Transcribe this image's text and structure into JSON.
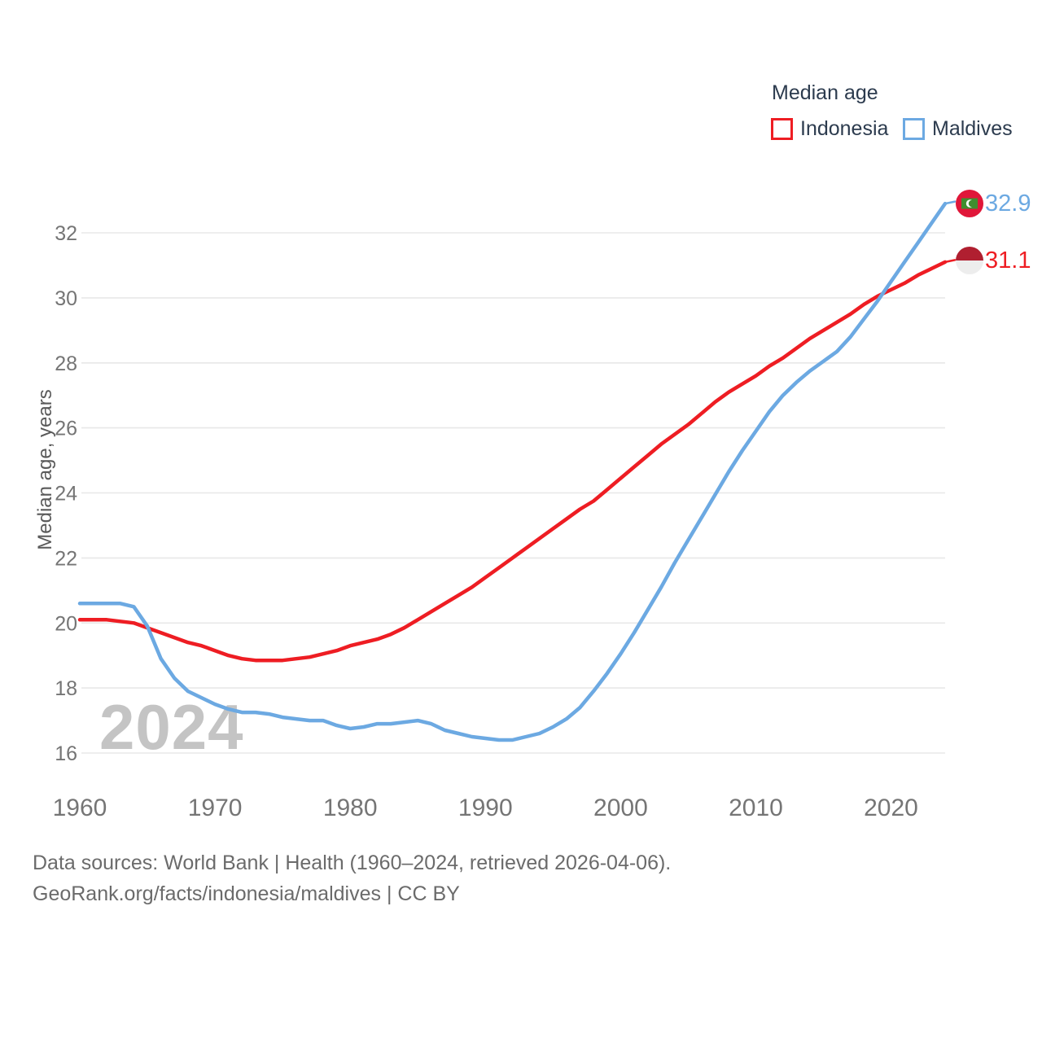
{
  "chart": {
    "watermark": "2024"
  },
  "legend": {
    "title": "Median age",
    "items": [
      {
        "label": "Indonesia",
        "color": "#ee1d23"
      },
      {
        "label": "Maldives",
        "color": "#6ca9e2"
      }
    ]
  },
  "y_axis": {
    "title": "Median age, years"
  },
  "end_labels": {
    "maldives": {
      "value": "32.9"
    },
    "indonesia": {
      "value": "31.1"
    }
  },
  "footer": {
    "line1": "Data sources: World Bank | Health (1960–2024, retrieved 2026-04-06).",
    "line2": "GeoRank.org/facts/indonesia/maldives | CC BY"
  },
  "chart_data": {
    "type": "line",
    "title": "Median age",
    "xlabel": "",
    "ylabel": "Median age, years",
    "x_start": 1960,
    "x_end": 2024,
    "ylim": [
      16,
      33.2
    ],
    "yticks": [
      16,
      18,
      20,
      22,
      24,
      26,
      28,
      30,
      32
    ],
    "xticks": [
      1960,
      1970,
      1980,
      1990,
      2000,
      2010,
      2020
    ],
    "grid": "horizontal",
    "legend_position": "top-right",
    "series": [
      {
        "name": "Indonesia",
        "color": "#ee1d23",
        "end_value": 31.1,
        "values": [
          20.1,
          20.1,
          20.1,
          20.05,
          20.0,
          19.85,
          19.7,
          19.55,
          19.4,
          19.3,
          19.15,
          19.0,
          18.9,
          18.85,
          18.85,
          18.85,
          18.9,
          18.95,
          19.05,
          19.15,
          19.3,
          19.4,
          19.5,
          19.65,
          19.85,
          20.1,
          20.35,
          20.6,
          20.85,
          21.1,
          21.4,
          21.7,
          22.0,
          22.3,
          22.6,
          22.9,
          23.2,
          23.5,
          23.75,
          24.1,
          24.45,
          24.8,
          25.15,
          25.5,
          25.8,
          26.1,
          26.45,
          26.8,
          27.1,
          27.35,
          27.6,
          27.9,
          28.15,
          28.45,
          28.75,
          29.0,
          29.25,
          29.5,
          29.8,
          30.05,
          30.25,
          30.45,
          30.7,
          30.9,
          31.1
        ]
      },
      {
        "name": "Maldives",
        "color": "#6ca9e2",
        "end_value": 32.9,
        "values": [
          20.6,
          20.6,
          20.6,
          20.6,
          20.5,
          19.9,
          18.9,
          18.3,
          17.9,
          17.7,
          17.5,
          17.35,
          17.25,
          17.25,
          17.2,
          17.1,
          17.05,
          17.0,
          17.0,
          16.85,
          16.75,
          16.8,
          16.9,
          16.9,
          16.95,
          17.0,
          16.9,
          16.7,
          16.6,
          16.5,
          16.45,
          16.4,
          16.4,
          16.5,
          16.6,
          16.8,
          17.05,
          17.4,
          17.9,
          18.45,
          19.05,
          19.7,
          20.4,
          21.1,
          21.85,
          22.55,
          23.25,
          23.95,
          24.65,
          25.3,
          25.9,
          26.5,
          27.0,
          27.4,
          27.75,
          28.05,
          28.35,
          28.8,
          29.35,
          29.9,
          30.5,
          31.1,
          31.7,
          32.3,
          32.9
        ]
      }
    ]
  }
}
